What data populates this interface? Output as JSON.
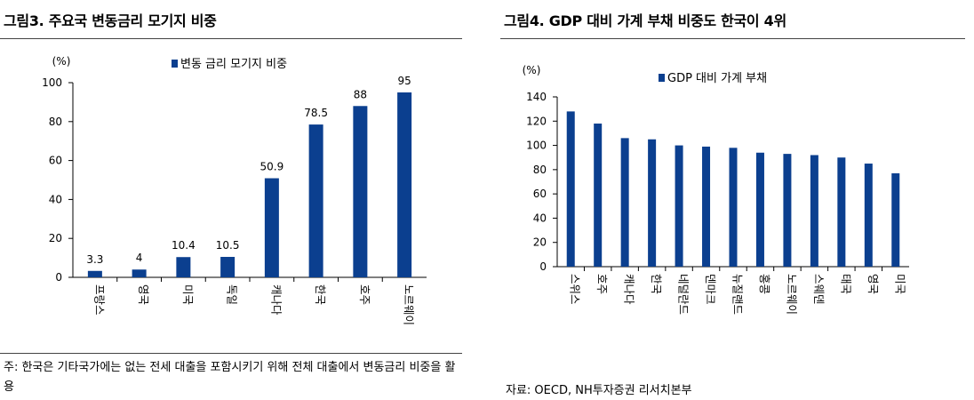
{
  "left_panel": {
    "title": "그림3. 주요국 변동금리 모기지 비중",
    "note": "주: 한국은 기타국가에는 없는 전세 대출을 포함시키기 위해 전체 대출에서 변동금리 비중을 활용"
  },
  "right_panel": {
    "title": "그림4. GDP 대비 가계 부채 비중도 한국이 4위",
    "source": "자료: OECD, NH투자증권 리서치본부"
  },
  "colors": {
    "bar": "#0b3f8f"
  },
  "chart_data": [
    {
      "type": "bar",
      "unit_label": "(%)",
      "legend": "변동 금리 모기지 비중",
      "legend_position": "top-center",
      "categories": [
        "프랑스",
        "영국",
        "미국",
        "독일",
        "캐나다",
        "한국",
        "호주",
        "노르웨이"
      ],
      "series": [
        {
          "name": "변동 금리 모기지 비중",
          "values": [
            3.3,
            4,
            10.4,
            10.5,
            50.9,
            78.5,
            88,
            95
          ]
        }
      ],
      "data_labels": [
        "3.3",
        "4",
        "10.4",
        "10.5",
        "50.9",
        "78.5",
        "88",
        "95"
      ],
      "ylim": [
        0,
        100
      ],
      "yticks": [
        "0",
        "20",
        "40",
        "60",
        "80",
        "100"
      ],
      "grid": false
    },
    {
      "type": "bar",
      "unit_label": "(%)",
      "legend": "GDP 대비 가계 부채",
      "legend_position": "top-center",
      "categories": [
        "스위스",
        "호주",
        "캐나다",
        "한국",
        "네덜란드",
        "덴마크",
        "뉴질랜드",
        "홍콩",
        "노르웨이",
        "스웨덴",
        "태국",
        "영국",
        "미국"
      ],
      "series": [
        {
          "name": "GDP 대비 가계 부채",
          "values": [
            128,
            118,
            106,
            105,
            100,
            99,
            98,
            94,
            93,
            92,
            90,
            85,
            77
          ]
        }
      ],
      "ylim": [
        0,
        140
      ],
      "yticks": [
        "0",
        "20",
        "40",
        "60",
        "80",
        "100",
        "120",
        "140"
      ],
      "grid": false
    }
  ]
}
